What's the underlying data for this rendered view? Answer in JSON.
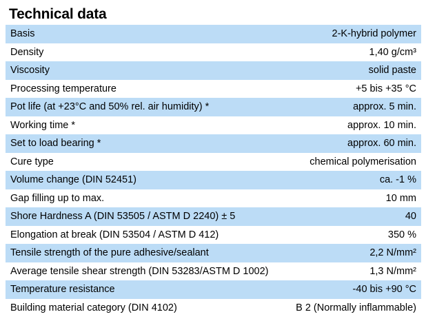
{
  "title": "Technical data",
  "table": {
    "rows": [
      {
        "label": "Basis",
        "value": "2-K-hybrid polymer"
      },
      {
        "label": "Density",
        "value": "1,40 g/cm³"
      },
      {
        "label": "Viscosity",
        "value": "solid paste"
      },
      {
        "label": "Processing temperature",
        "value": "+5 bis +35 °C"
      },
      {
        "label": "Pot life (at +23°C and 50% rel. air humidity) *",
        "value": "approx. 5 min."
      },
      {
        "label": "Working time *",
        "value": "approx. 10 min."
      },
      {
        "label": "Set to load bearing *",
        "value": "approx. 60 min."
      },
      {
        "label": "Cure type",
        "value": "chemical polymerisation"
      },
      {
        "label": "Volume change (DIN 52451)",
        "value": "ca. -1 %"
      },
      {
        "label": "Gap filling up to max.",
        "value": "10 mm"
      },
      {
        "label": "Shore Hardness A (DIN 53505 / ASTM D 2240) ± 5",
        "value": "40"
      },
      {
        "label": "Elongation at break (DIN 53504 / ASTM D 412)",
        "value": "350 %"
      },
      {
        "label": "Tensile strength of the pure adhesive/sealant",
        "value": "2,2 N/mm²"
      },
      {
        "label": "Average tensile shear strength (DIN 53283/ASTM D 1002)",
        "value": "1,3 N/mm²"
      },
      {
        "label": "Temperature resistance",
        "value": "-40 bis +90 °C"
      },
      {
        "label": "Building material category (DIN 4102)",
        "value": "B 2 (Normally inflammable)"
      }
    ]
  },
  "colors": {
    "row_shade": "#bcdcf6",
    "text": "#000000",
    "background": "#ffffff"
  }
}
